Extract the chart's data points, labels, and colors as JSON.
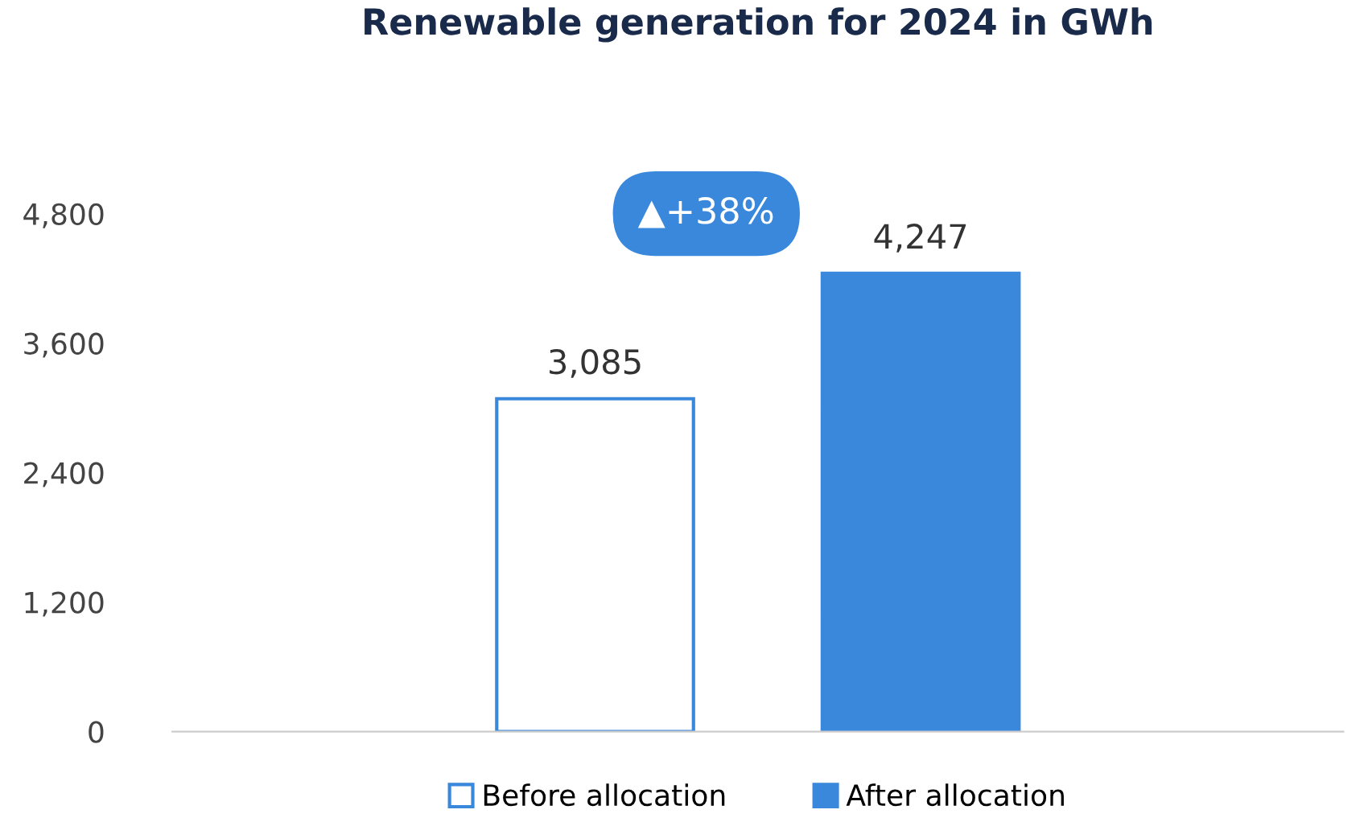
{
  "chart_data": {
    "type": "bar",
    "title": "Renewable generation for 2024 in GWh",
    "categories": [
      null
    ],
    "series": [
      {
        "name": "Before allocation",
        "color": "#ffffff",
        "values": [
          3085
        ],
        "value_labels": [
          "3,085"
        ]
      },
      {
        "name": "After allocation",
        "color": "#3a88dc",
        "values": [
          4247
        ],
        "value_labels": [
          "4,247"
        ]
      }
    ],
    "ylim": [
      0,
      4800
    ],
    "yticks": [
      0,
      {
        "value": 1200,
        "label": "1,200"
      },
      {
        "value": 2400,
        "label": "2,400"
      },
      {
        "value": 3600,
        "label": "3,600"
      },
      {
        "value": 4800,
        "label": "4,800"
      }
    ],
    "grid": false,
    "legend": "bottom",
    "annotations": [
      "▲+38%"
    ]
  }
}
